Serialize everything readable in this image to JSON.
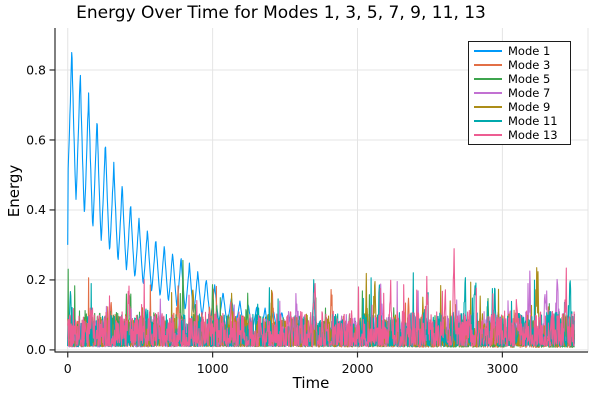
{
  "title": "Energy Over Time for Modes 1, 3, 5, 7, 9, 11, 13",
  "chart_data": {
    "type": "line",
    "title": "Energy Over Time for Modes 1, 3, 5, 7, 9, 11, 13",
    "xlabel": "Time",
    "ylabel": "Energy",
    "xlim": [
      -88,
      3591
    ],
    "ylim": [
      -0.006,
      0.92
    ],
    "xticks": [
      0,
      1000,
      2000,
      3000
    ],
    "yticks": [
      0.0,
      0.2,
      0.4,
      0.6,
      0.8
    ],
    "t_start": 0,
    "t_end": 3500,
    "grid": true,
    "grid_color": "#e4e4e4",
    "axis_color": "#2b2b2b",
    "legend_position": "top-right",
    "series": [
      {
        "name": "Mode 1",
        "color": "#009af9",
        "gen": {
          "type": "damped",
          "peak": 0.886,
          "peakT": 28,
          "period": 58,
          "hiInf": 0.045,
          "hiAmp": 0.845,
          "hiTau": 560,
          "loInf": 0.018,
          "loAmp": 0.46,
          "loTau": 520,
          "floor": 0.05,
          "seed": 11
        }
      },
      {
        "name": "Mode 3",
        "color": "#e26f46",
        "gen": {
          "type": "noise",
          "s0": 0.105,
          "s1": -0.035,
          "seed": 23,
          "spikes": [
            [
              300,
              0.1
            ],
            [
              760,
              0.14
            ],
            [
              980,
              0.11
            ],
            [
              1410,
              0.13
            ],
            [
              1820,
              0.11
            ],
            [
              2350,
              0.1
            ]
          ]
        }
      },
      {
        "name": "Mode 5",
        "color": "#3da44d",
        "gen": {
          "type": "noise",
          "s0": 0.115,
          "s1": -0.04,
          "seed": 37,
          "spikes": [
            [
              430,
              0.13
            ],
            [
              795,
              0.17
            ],
            [
              1000,
              0.16
            ],
            [
              1240,
              0.1
            ],
            [
              2060,
              0.09
            ],
            [
              2900,
              0.1
            ]
          ]
        }
      },
      {
        "name": "Mode 7",
        "color": "#c271d2",
        "gen": {
          "type": "noise",
          "s0": 0.085,
          "s1": 0.03,
          "seed": 41,
          "spikes": [
            [
              640,
              0.09
            ],
            [
              1580,
              0.12
            ],
            [
              2160,
              0.1
            ],
            [
              2680,
              0.09
            ],
            [
              3190,
              0.13
            ],
            [
              3300,
              0.11
            ],
            [
              3377,
              0.14
            ]
          ]
        }
      },
      {
        "name": "Mode 9",
        "color": "#ac8d18",
        "gen": {
          "type": "noise",
          "s0": 0.1,
          "s1": 0.005,
          "seed": 53,
          "spikes": [
            [
              865,
              0.17
            ],
            [
              1130,
              0.11
            ],
            [
              2060,
              0.14
            ],
            [
              2120,
              0.16
            ],
            [
              2450,
              0.1
            ],
            [
              3238,
              0.16
            ]
          ]
        }
      },
      {
        "name": "Mode 11",
        "color": "#00a9ad",
        "gen": {
          "type": "noise",
          "s0": 0.1,
          "s1": 0.01,
          "seed": 67,
          "spikes": [
            [
              15,
              0.12
            ],
            [
              540,
              0.1
            ],
            [
              1310,
              0.11
            ],
            [
              1700,
              0.15
            ],
            [
              2150,
              0.12
            ],
            [
              2742,
              0.17
            ],
            [
              2811,
              0.17
            ],
            [
              2949,
              0.14
            ],
            [
              3466,
              0.11
            ]
          ]
        }
      },
      {
        "name": "Mode 13",
        "color": "#ed5d92",
        "gen": {
          "type": "noise",
          "s0": 0.108,
          "s1": 0.008,
          "seed": 79,
          "spikes": [
            [
              166,
              0.11
            ],
            [
              420,
              0.12
            ],
            [
              1706,
              0.18
            ],
            [
              2225,
              0.14
            ],
            [
              2480,
              0.13
            ],
            [
              2604,
              0.12
            ],
            [
              2666,
              0.25
            ],
            [
              3100,
              0.12
            ],
            [
              3440,
              0.14
            ]
          ]
        }
      }
    ]
  }
}
